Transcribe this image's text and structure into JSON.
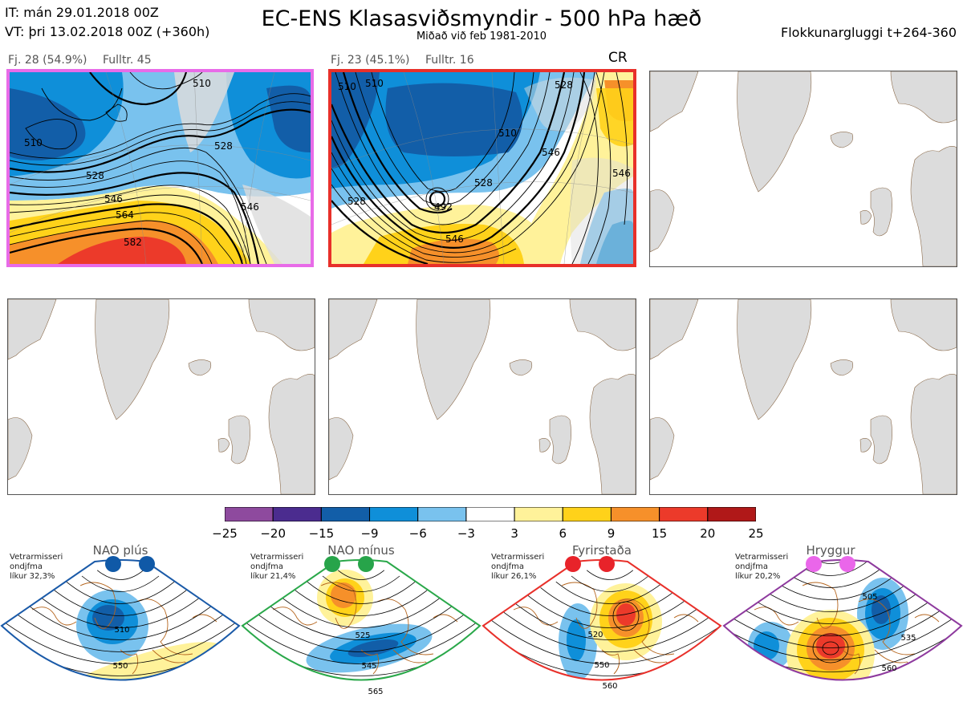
{
  "header": {
    "it_line": "IT: mán 29.01.2018 00Z",
    "vt_line": "VT: þri 13.02.2018 00Z  (+360h)",
    "title": "EC-ENS Klasasviðsmyndir - 500 hPa hæð",
    "subtitle": "Miðað við feb 1981-2010",
    "window": "Flokkunargluggi t+264-360"
  },
  "panels": [
    {
      "label_fj": "Fj. 28 (54.9%)",
      "label_rep": "Fulltr. 45",
      "tag": "",
      "border_color": "#e86be8",
      "contour_labels": [
        "510",
        "510",
        "528",
        "546",
        "564",
        "582",
        "528",
        "546"
      ]
    },
    {
      "label_fj": "Fj. 23 (45.1%)",
      "label_rep": "Fulltr. 16",
      "tag": "CR",
      "border_color": "#e8302a",
      "contour_labels": [
        "510",
        "510",
        "528",
        "528",
        "510",
        "528",
        "546",
        "546",
        "546",
        "492"
      ]
    }
  ],
  "colorbar": {
    "ticks": [
      "−25",
      "−20",
      "−15",
      "−9",
      "−6",
      "−3",
      "3",
      "6",
      "9",
      "15",
      "20",
      "25"
    ],
    "colors": [
      "#8e4a9e",
      "#4b2c8f",
      "#125ea8",
      "#0f8fd9",
      "#79c2ee",
      "#ffffff",
      "#fff29a",
      "#ffd21a",
      "#f6902a",
      "#ec3a2a",
      "#b01818"
    ]
  },
  "regimes": [
    {
      "name": "NAO plús",
      "note": [
        "Vetrarmisseri",
        "ondjfma",
        "líkur 32,3%"
      ],
      "color": "#1a5aa8",
      "dot_color": "#1059a7",
      "contour_labels": [
        "510",
        "550"
      ]
    },
    {
      "name": "NAO mínus",
      "note": [
        "Vetrarmisseri",
        "ondjfma",
        "líkur 21,4%"
      ],
      "color": "#2aa84a",
      "dot_color": "#27a44a",
      "contour_labels": [
        "525",
        "545",
        "565"
      ]
    },
    {
      "name": "Fyrirstaða",
      "note": [
        "Vetrarmisseri",
        "ondjfma",
        "líkur 26,1%"
      ],
      "color": "#e8302a",
      "dot_color": "#e8232a",
      "contour_labels": [
        "520",
        "550",
        "560"
      ]
    },
    {
      "name": "Hryggur",
      "note": [
        "Vetrarmisseri",
        "ondjfma",
        "líkur 20,2%"
      ],
      "color": "#8e3a9e",
      "dot_color": "#ea66ea",
      "contour_labels": [
        "505",
        "535",
        "560"
      ]
    }
  ],
  "colors": {
    "land": "#dcdcdc",
    "coast": "#8a6a4a",
    "regime_coast": "#b5651d"
  }
}
